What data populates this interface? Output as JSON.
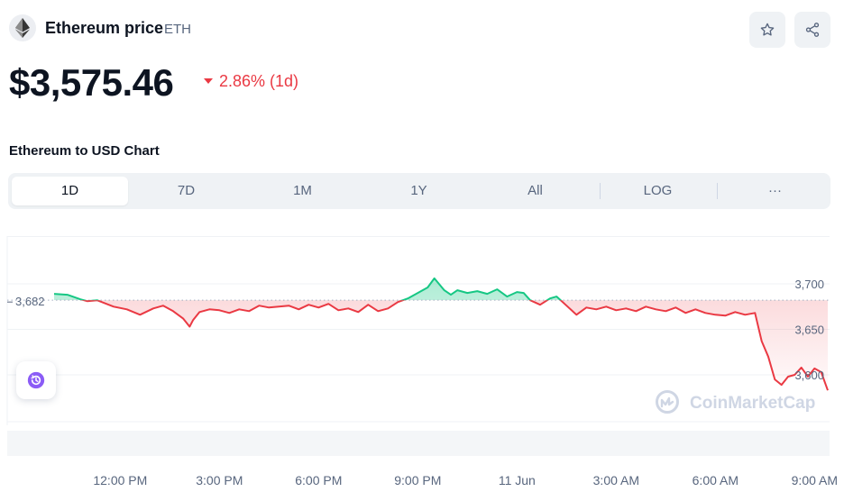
{
  "coin": {
    "name": "Ethereum price",
    "symbol": "ETH",
    "price": "$3,575.46",
    "change": "2.86% (1d)",
    "change_direction": "down"
  },
  "icons": {
    "logo": "ethereum-logo-icon",
    "star": "star-icon",
    "share": "share-icon",
    "history": "history-icon",
    "watermark": "coinmarketcap-logo-icon"
  },
  "colors": {
    "up": "#16c784",
    "down": "#ea3943",
    "accent": "#8b5cf6",
    "muted": "#58667e"
  },
  "chart_section": {
    "title": "Ethereum to USD Chart",
    "ranges": [
      "1D",
      "7D",
      "1M",
      "1Y",
      "All",
      "LOG",
      "···"
    ],
    "active_range": "1D"
  },
  "watermark": "CoinMarketCap",
  "chart_data": {
    "type": "line",
    "reference_value": 3682,
    "reference_label": "3,682",
    "y_ticks": [
      3700,
      3650,
      3600
    ],
    "y_tick_labels": [
      "3,700",
      "3,650",
      "3,600"
    ],
    "x_tick_labels": [
      "12:00 PM",
      "3:00 PM",
      "6:00 PM",
      "9:00 PM",
      "11 Jun",
      "3:00 AM",
      "6:00 AM",
      "9:00 AM"
    ],
    "x_tick_hours": [
      2,
      5,
      8,
      11,
      14,
      17,
      20,
      23
    ],
    "x_range_hours": [
      0,
      23.4
    ],
    "ylim": [
      3560,
      3720
    ],
    "series": [
      {
        "x": [
          0.0,
          0.4,
          0.8,
          1.0,
          1.3,
          1.8,
          2.2,
          2.6,
          3.0,
          3.3,
          3.6,
          3.9,
          4.1,
          4.2,
          4.4,
          4.7,
          5.0,
          5.3,
          5.6,
          5.9,
          6.2,
          6.5,
          6.8,
          7.1,
          7.4,
          7.7,
          8.0,
          8.3,
          8.6,
          8.9,
          9.2,
          9.5,
          9.8,
          10.1,
          10.4,
          10.7,
          11.0,
          11.3,
          11.5,
          11.8,
          12.0,
          12.2,
          12.5,
          12.8,
          13.1,
          13.4,
          13.7,
          14.0,
          14.2,
          14.4,
          14.7,
          15.0,
          15.2,
          15.5,
          15.8,
          16.1,
          16.4,
          16.7,
          17.0,
          17.3,
          17.6,
          17.9,
          18.2,
          18.5,
          18.8,
          19.1,
          19.4,
          19.7,
          20.0,
          20.3,
          20.6,
          20.9,
          21.2,
          21.4,
          21.6,
          21.8,
          22.0,
          22.2,
          22.4,
          22.6,
          22.8,
          23.0,
          23.2,
          23.4
        ],
        "y": [
          3689,
          3688,
          3683,
          3681,
          3682,
          3675,
          3672,
          3666,
          3673,
          3676,
          3670,
          3662,
          3653,
          3660,
          3669,
          3672,
          3671,
          3668,
          3672,
          3670,
          3676,
          3674,
          3675,
          3676,
          3672,
          3677,
          3674,
          3678,
          3671,
          3673,
          3669,
          3677,
          3670,
          3673,
          3680,
          3684,
          3690,
          3696,
          3706,
          3693,
          3688,
          3693,
          3690,
          3692,
          3689,
          3694,
          3686,
          3691,
          3690,
          3682,
          3677,
          3684,
          3686,
          3676,
          3666,
          3674,
          3672,
          3675,
          3671,
          3673,
          3670,
          3675,
          3672,
          3670,
          3674,
          3668,
          3672,
          3668,
          3666,
          3665,
          3669,
          3666,
          3668,
          3637,
          3620,
          3595,
          3589,
          3598,
          3600,
          3608,
          3598,
          3607,
          3603,
          3583
        ]
      }
    ]
  }
}
